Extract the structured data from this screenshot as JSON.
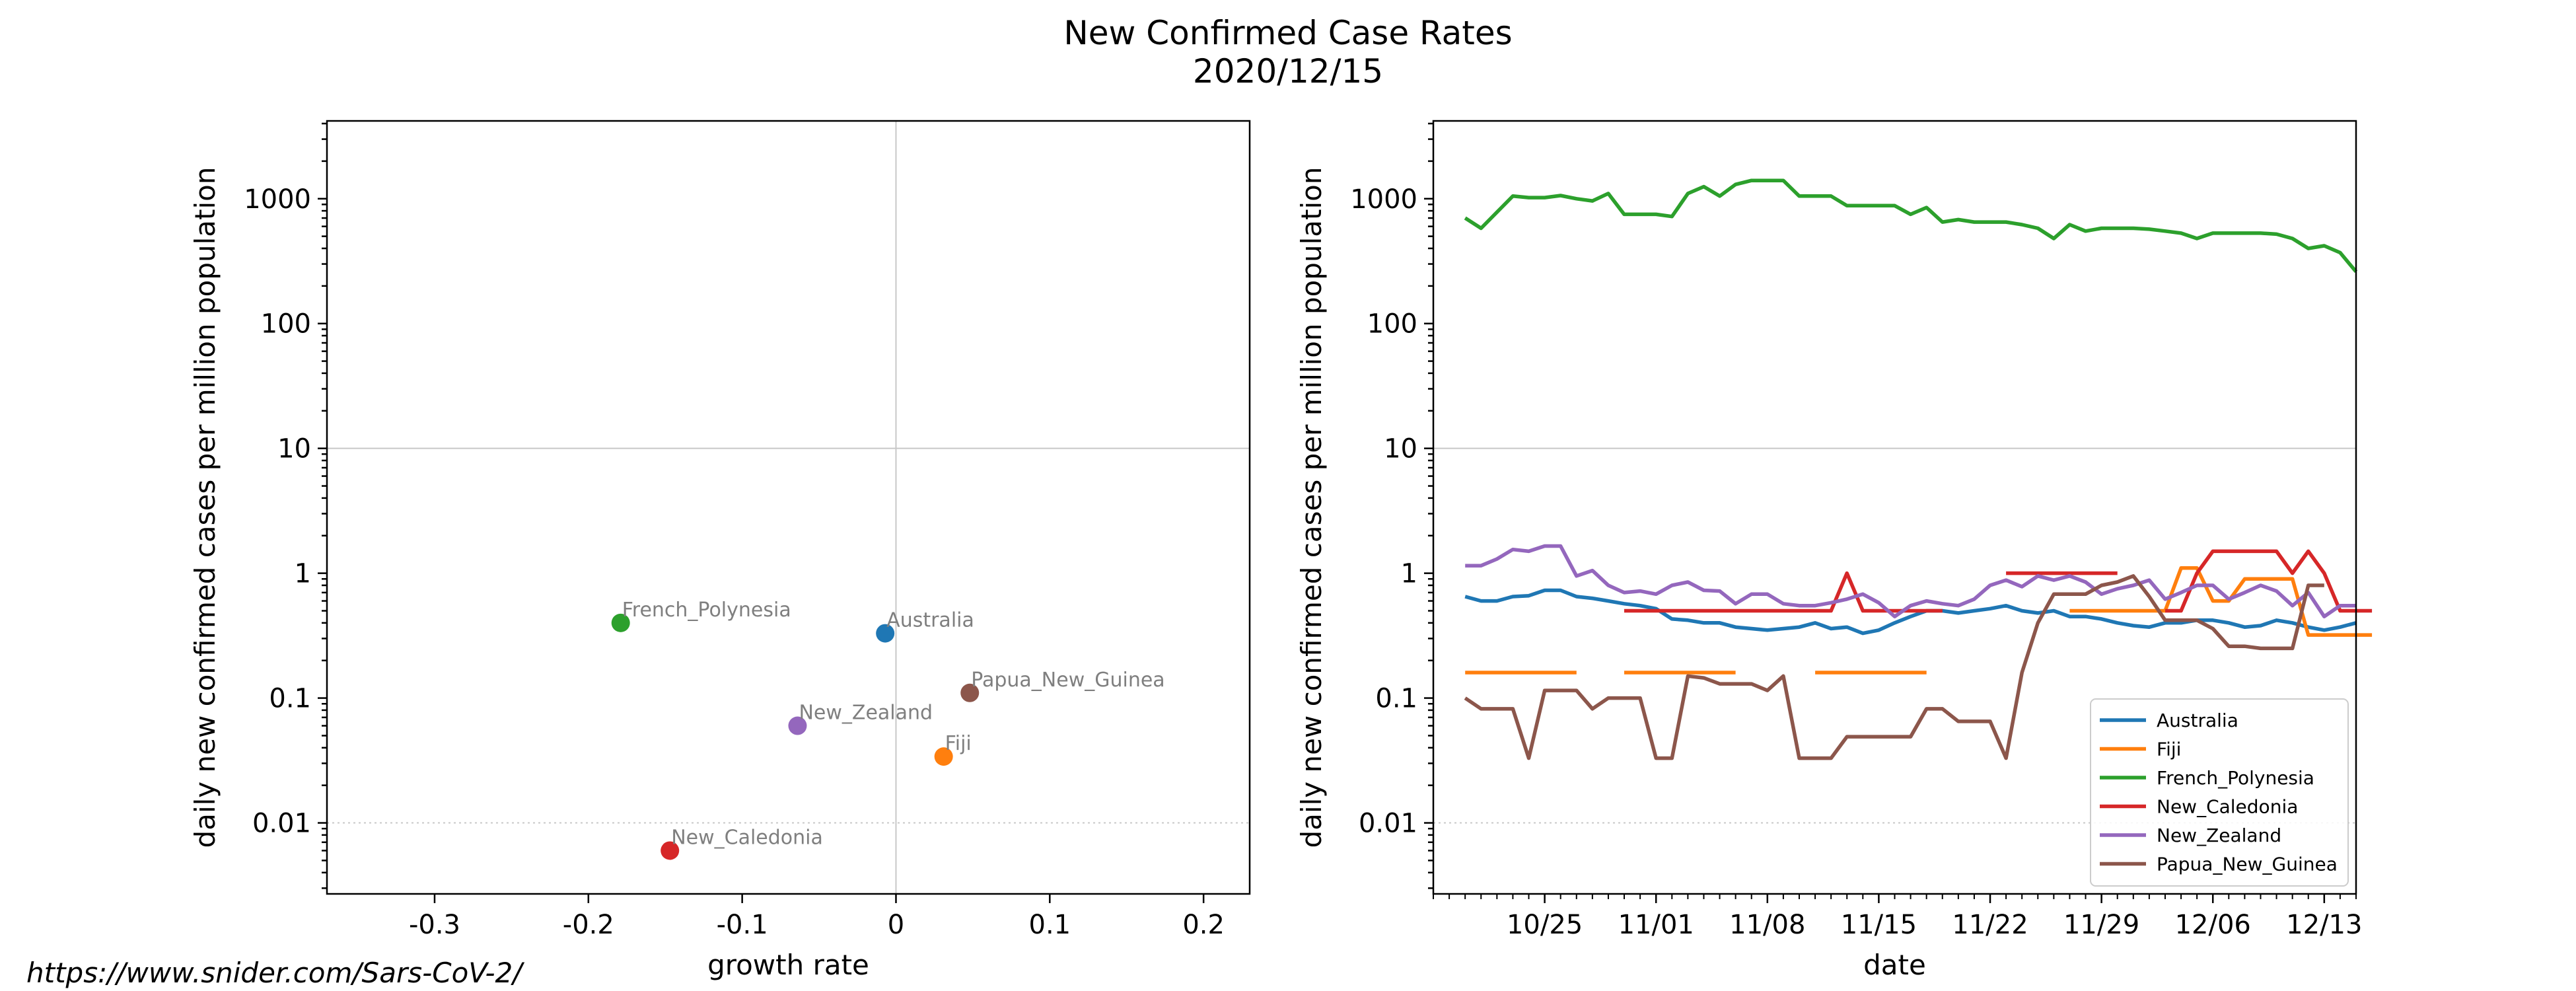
{
  "figure": {
    "title": "New Confirmed Case Rates",
    "subtitle": "2020/12/15",
    "footer": "https://www.snider.com/Sars-CoV-2/"
  },
  "chart_data": [
    {
      "type": "scatter",
      "xlabel": "growth rate",
      "ylabel": "daily new confirmed cases per million population",
      "xlim": [
        -0.37,
        0.23
      ],
      "ylim": [
        0.0027,
        4200
      ],
      "yscale": "log",
      "xticks": [
        -0.3,
        -0.2,
        -0.1,
        0,
        0.1,
        0.2
      ],
      "xtick_labels": [
        "-0.3",
        "-0.2",
        "-0.1",
        "0",
        "0.1",
        "0.2"
      ],
      "yticks": [
        0.01,
        0.1,
        1,
        10,
        100,
        1000
      ],
      "ytick_labels": [
        "0.01",
        "0.1",
        "1",
        "10",
        "100",
        "1000"
      ],
      "reference_lines": {
        "x": 0,
        "y_solid": 10,
        "y_dotted": 0.01
      },
      "points": [
        {
          "label": "Australia",
          "x": -0.007,
          "y": 0.33,
          "color": "#1f77b4"
        },
        {
          "label": "Fiji",
          "x": 0.031,
          "y": 0.034,
          "color": "#ff7f0e"
        },
        {
          "label": "French_Polynesia",
          "x": -0.179,
          "y": 0.4,
          "color": "#2ca02c"
        },
        {
          "label": "New_Caledonia",
          "x": -0.147,
          "y": 0.006,
          "color": "#d62728"
        },
        {
          "label": "New_Zealand",
          "x": -0.064,
          "y": 0.06,
          "color": "#9467bd"
        },
        {
          "label": "Papua_New_Guinea",
          "x": 0.048,
          "y": 0.11,
          "color": "#8c564b"
        }
      ]
    },
    {
      "type": "line",
      "xlabel": "date",
      "ylabel": "daily new confirmed cases per million population",
      "ylim": [
        0.0027,
        4200
      ],
      "yscale": "log",
      "xlim": [
        "2020-10-18",
        "2020-12-15"
      ],
      "xticks": [
        "2020-10-25",
        "2020-11-01",
        "2020-11-08",
        "2020-11-15",
        "2020-11-22",
        "2020-11-29",
        "2020-12-06",
        "2020-12-13"
      ],
      "xtick_labels": [
        "10/25",
        "11/01",
        "11/08",
        "11/15",
        "11/22",
        "11/29",
        "12/06",
        "12/13"
      ],
      "yticks": [
        0.01,
        0.1,
        1,
        10,
        100,
        1000
      ],
      "ytick_labels": [
        "0.01",
        "0.1",
        "1",
        "10",
        "100",
        "1000"
      ],
      "reference_lines": {
        "y_solid": 10,
        "y_dotted": 0.01
      },
      "legend": "lower-right",
      "x_start": "2020-10-20",
      "series": [
        {
          "name": "Australia",
          "color": "#1f77b4",
          "values": [
            0.65,
            0.6,
            0.6,
            0.65,
            0.66,
            0.73,
            0.73,
            0.65,
            0.63,
            0.6,
            0.57,
            0.55,
            0.52,
            0.43,
            0.42,
            0.4,
            0.4,
            0.37,
            0.36,
            0.35,
            0.36,
            0.37,
            0.4,
            0.36,
            0.37,
            0.33,
            0.35,
            0.4,
            0.45,
            0.5,
            0.5,
            0.48,
            0.5,
            0.52,
            0.55,
            0.5,
            0.48,
            0.5,
            0.45,
            0.45,
            0.43,
            0.4,
            0.38,
            0.37,
            0.4,
            0.4,
            0.42,
            0.42,
            0.4,
            0.37,
            0.38,
            0.42,
            0.4,
            0.37,
            0.35,
            0.37,
            0.4
          ]
        },
        {
          "name": "Fiji",
          "color": "#ff7f0e",
          "values": [
            0.16,
            0.16,
            0.16,
            0.16,
            0.16,
            0.16,
            0.16,
            0.16,
            null,
            null,
            0.16,
            0.16,
            0.16,
            0.16,
            0.16,
            0.16,
            0.16,
            0.16,
            null,
            null,
            null,
            null,
            0.16,
            0.16,
            0.16,
            0.16,
            0.16,
            0.16,
            0.16,
            0.16,
            null,
            null,
            null,
            null,
            null,
            null,
            null,
            null,
            0.5,
            0.5,
            0.5,
            0.5,
            0.5,
            0.5,
            0.5,
            1.1,
            1.1,
            0.6,
            0.6,
            0.9,
            0.9,
            0.9,
            0.9,
            0.32,
            0.32,
            0.32,
            0.32,
            0.32
          ]
        },
        {
          "name": "French_Polynesia",
          "color": "#2ca02c",
          "values": [
            700,
            580,
            780,
            1050,
            1020,
            1020,
            1060,
            1000,
            960,
            1100,
            750,
            750,
            750,
            720,
            1100,
            1250,
            1050,
            1300,
            1400,
            1400,
            1400,
            1050,
            1050,
            1050,
            880,
            880,
            880,
            880,
            750,
            850,
            650,
            680,
            650,
            650,
            650,
            620,
            580,
            480,
            620,
            550,
            580,
            580,
            580,
            570,
            550,
            530,
            480,
            530,
            530,
            530,
            530,
            520,
            480,
            400,
            420,
            370,
            260
          ]
        },
        {
          "name": "New_Caledonia",
          "color": "#d62728",
          "values": [
            null,
            null,
            null,
            null,
            null,
            null,
            null,
            null,
            null,
            null,
            0.5,
            0.5,
            0.5,
            0.5,
            0.5,
            0.5,
            0.5,
            0.5,
            0.5,
            0.5,
            0.5,
            0.5,
            0.5,
            0.5,
            1.0,
            0.5,
            0.5,
            0.5,
            0.5,
            0.5,
            0.5,
            null,
            null,
            null,
            1.0,
            1.0,
            1.0,
            1.0,
            1.0,
            1.0,
            1.0,
            1.0,
            null,
            null,
            0.5,
            0.5,
            1.0,
            1.5,
            1.5,
            1.5,
            1.5,
            1.5,
            1.0,
            1.5,
            1.0,
            0.5,
            0.5,
            0.5
          ]
        },
        {
          "name": "New_Zealand",
          "color": "#9467bd",
          "values": [
            1.15,
            1.15,
            1.3,
            1.55,
            1.5,
            1.65,
            1.65,
            0.95,
            1.05,
            0.8,
            0.7,
            0.72,
            0.68,
            0.8,
            0.85,
            0.73,
            0.72,
            0.57,
            0.68,
            0.68,
            0.57,
            0.55,
            0.55,
            0.58,
            0.62,
            0.68,
            0.58,
            0.45,
            0.55,
            0.6,
            0.57,
            0.55,
            0.62,
            0.8,
            0.88,
            0.78,
            0.95,
            0.88,
            0.95,
            0.85,
            0.68,
            0.75,
            0.8,
            0.88,
            0.62,
            0.7,
            0.8,
            0.8,
            0.62,
            0.7,
            0.8,
            0.72,
            0.55,
            0.7,
            0.45,
            0.55,
            0.55
          ]
        },
        {
          "name": "Papua_New_Guinea",
          "color": "#8c564b",
          "values": [
            0.1,
            0.082,
            0.082,
            0.082,
            0.033,
            0.115,
            0.115,
            0.115,
            0.082,
            0.1,
            0.1,
            0.1,
            0.033,
            0.033,
            0.15,
            0.145,
            0.13,
            0.13,
            0.13,
            0.115,
            0.15,
            0.033,
            0.033,
            0.033,
            0.049,
            0.049,
            0.049,
            0.049,
            0.049,
            0.082,
            0.082,
            0.065,
            0.065,
            0.065,
            0.033,
            0.16,
            0.4,
            0.68,
            0.68,
            0.68,
            0.8,
            0.85,
            0.95,
            0.65,
            0.42,
            0.42,
            0.42,
            0.36,
            0.26,
            0.26,
            0.25,
            0.25,
            0.25,
            0.8,
            0.8
          ]
        }
      ]
    }
  ]
}
